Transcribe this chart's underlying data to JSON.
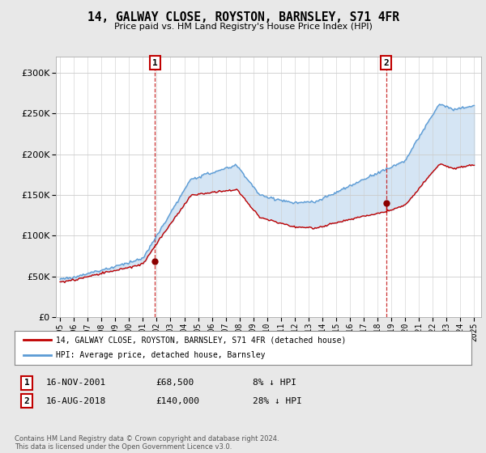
{
  "title": "14, GALWAY CLOSE, ROYSTON, BARNSLEY, S71 4FR",
  "subtitle": "Price paid vs. HM Land Registry's House Price Index (HPI)",
  "legend_line1": "14, GALWAY CLOSE, ROYSTON, BARNSLEY, S71 4FR (detached house)",
  "legend_line2": "HPI: Average price, detached house, Barnsley",
  "transaction1_label": "1",
  "transaction1_date": "16-NOV-2001",
  "transaction1_price": "£68,500",
  "transaction1_hpi": "8% ↓ HPI",
  "transaction2_label": "2",
  "transaction2_date": "16-AUG-2018",
  "transaction2_price": "£140,000",
  "transaction2_hpi": "28% ↓ HPI",
  "footnote": "Contains HM Land Registry data © Crown copyright and database right 2024.\nThis data is licensed under the Open Government Licence v3.0.",
  "hpi_color": "#5b9bd5",
  "price_color": "#c00000",
  "marker_color": "#8b0000",
  "vline_color": "#c00000",
  "fill_color": "#ddeeff",
  "background_color": "#e8e8e8",
  "plot_bg_color": "#ffffff",
  "ylim": [
    0,
    320000
  ],
  "yticks": [
    0,
    50000,
    100000,
    150000,
    200000,
    250000,
    300000
  ],
  "xlim_start": 1994.7,
  "xlim_end": 2025.5,
  "transaction1_x": 2001.88,
  "transaction2_x": 2018.62,
  "transaction1_y": 68500,
  "transaction2_y": 140000
}
